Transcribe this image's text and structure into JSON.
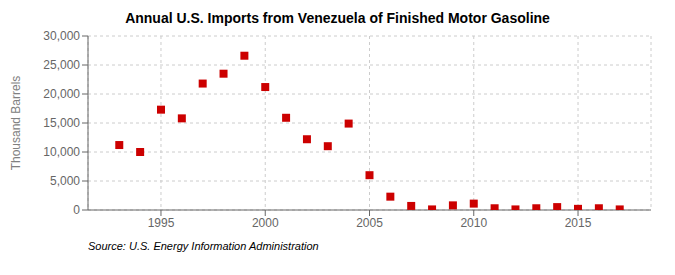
{
  "chart_data": {
    "type": "scatter",
    "title": "Annual U.S. Imports from Venezuela of Finished Motor Gasoline",
    "ylabel": "Thousand Barrels",
    "annotations": [
      "Source: U.S. Energy Information Administration"
    ],
    "x": [
      1993,
      1994,
      1995,
      1996,
      1997,
      1998,
      1999,
      2000,
      2001,
      2002,
      2003,
      2004,
      2005,
      2006,
      2007,
      2008,
      2009,
      2010,
      2011,
      2012,
      2013,
      2014,
      2015,
      2016,
      2017
    ],
    "values": [
      11200,
      10000,
      17300,
      15800,
      21800,
      23500,
      26600,
      21200,
      15900,
      12200,
      11000,
      14900,
      6000,
      2300,
      700,
      100,
      800,
      1100,
      300,
      100,
      300,
      500,
      200,
      300,
      100
    ],
    "color": "#cc0000",
    "marker": "square",
    "xlim": [
      1991.5,
      2018.5
    ],
    "ylim": [
      0,
      30000
    ],
    "xticks": [
      1995,
      2000,
      2005,
      2010,
      2015
    ],
    "yticks": [
      0,
      {
        "value": 5000,
        "label": "5,000"
      },
      {
        "value": 10000,
        "label": "10,000"
      },
      {
        "value": 15000,
        "label": "15,000"
      },
      {
        "value": 20000,
        "label": "20,000"
      },
      {
        "value": 25000,
        "label": "25,000"
      },
      {
        "value": 30000,
        "label": "30,000"
      }
    ],
    "grid": true
  }
}
